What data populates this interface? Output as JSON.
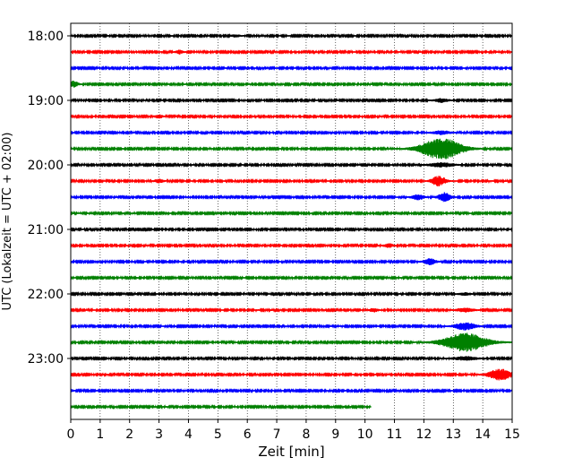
{
  "chart_data": {
    "type": "line",
    "title": "",
    "xlabel": "Zeit  [min]",
    "ylabel": "UTC (Lokalzeit = UTC + 02:00)",
    "xlim": [
      0,
      15
    ],
    "x_ticks": [
      "0",
      "1",
      "2",
      "3",
      "4",
      "5",
      "6",
      "7",
      "8",
      "9",
      "10",
      "11",
      "12",
      "13",
      "14",
      "15"
    ],
    "y_ticks": [
      "18:00",
      "19:00",
      "20:00",
      "21:00",
      "22:00",
      "23:00"
    ],
    "grid": "vertical dotted",
    "trace_interval_minutes": 15,
    "trace_colors": [
      "#000000",
      "#ff0000",
      "#0000ff",
      "#008000"
    ],
    "series": [
      {
        "start": "18:00",
        "color": "#000000",
        "noise": 0.25,
        "events": [
          {
            "t": 5.6,
            "amp": 0.35,
            "width": 0.15
          }
        ]
      },
      {
        "start": "18:15",
        "color": "#ff0000",
        "noise": 0.25,
        "events": [
          {
            "t": 3.7,
            "amp": 0.6,
            "width": 0.12
          }
        ]
      },
      {
        "start": "18:30",
        "color": "#0000ff",
        "noise": 0.25,
        "events": [
          {
            "t": 15.0,
            "amp": 0.5,
            "width": 0.1
          }
        ]
      },
      {
        "start": "18:45",
        "color": "#008000",
        "noise": 0.25,
        "events": [
          {
            "t": 0.1,
            "amp": 1.0,
            "width": 0.15
          }
        ]
      },
      {
        "start": "19:00",
        "color": "#000000",
        "noise": 0.25,
        "events": [
          {
            "t": 12.6,
            "amp": 0.6,
            "width": 0.25
          }
        ]
      },
      {
        "start": "19:15",
        "color": "#ff0000",
        "noise": 0.25,
        "events": [
          {
            "t": 3.0,
            "amp": 0.55,
            "width": 0.12
          }
        ]
      },
      {
        "start": "19:30",
        "color": "#0000ff",
        "noise": 0.25,
        "events": [
          {
            "t": 12.6,
            "amp": 0.6,
            "width": 0.3
          }
        ]
      },
      {
        "start": "19:45",
        "color": "#008000",
        "noise": 0.25,
        "events": [
          {
            "t": 12.6,
            "amp": 3.5,
            "width": 0.7
          }
        ]
      },
      {
        "start": "20:00",
        "color": "#000000",
        "noise": 0.25,
        "events": [
          {
            "t": 12.6,
            "amp": 0.7,
            "width": 0.4
          }
        ]
      },
      {
        "start": "20:15",
        "color": "#ff0000",
        "noise": 0.25,
        "events": [
          {
            "t": 3.0,
            "amp": 0.55,
            "width": 0.15
          },
          {
            "t": 12.5,
            "amp": 1.6,
            "width": 0.25
          }
        ]
      },
      {
        "start": "20:30",
        "color": "#0000ff",
        "noise": 0.25,
        "events": [
          {
            "t": 11.8,
            "amp": 0.9,
            "width": 0.2
          },
          {
            "t": 12.7,
            "amp": 1.5,
            "width": 0.2
          }
        ]
      },
      {
        "start": "20:45",
        "color": "#008000",
        "noise": 0.25,
        "events": []
      },
      {
        "start": "21:00",
        "color": "#000000",
        "noise": 0.25,
        "events": []
      },
      {
        "start": "21:15",
        "color": "#ff0000",
        "noise": 0.25,
        "events": [
          {
            "t": 10.8,
            "amp": 0.6,
            "width": 0.15
          }
        ]
      },
      {
        "start": "21:30",
        "color": "#0000ff",
        "noise": 0.25,
        "events": [
          {
            "t": 12.2,
            "amp": 1.0,
            "width": 0.2
          }
        ]
      },
      {
        "start": "21:45",
        "color": "#008000",
        "noise": 0.25,
        "events": []
      },
      {
        "start": "22:00",
        "color": "#000000",
        "noise": 0.25,
        "events": [
          {
            "t": 13.4,
            "amp": 0.4,
            "width": 0.2
          }
        ]
      },
      {
        "start": "22:15",
        "color": "#ff0000",
        "noise": 0.25,
        "events": [
          {
            "t": 10.3,
            "amp": 0.6,
            "width": 0.15
          },
          {
            "t": 13.4,
            "amp": 0.6,
            "width": 0.3
          }
        ]
      },
      {
        "start": "22:30",
        "color": "#0000ff",
        "noise": 0.25,
        "events": [
          {
            "t": 13.4,
            "amp": 1.2,
            "width": 0.35
          }
        ]
      },
      {
        "start": "22:45",
        "color": "#008000",
        "noise": 0.25,
        "events": [
          {
            "t": 13.4,
            "amp": 3.0,
            "width": 0.75
          }
        ]
      },
      {
        "start": "23:00",
        "color": "#000000",
        "noise": 0.25,
        "events": [
          {
            "t": 13.4,
            "amp": 0.6,
            "width": 0.4
          }
        ]
      },
      {
        "start": "23:15",
        "color": "#ff0000",
        "noise": 0.25,
        "events": [
          {
            "t": 14.6,
            "amp": 1.8,
            "width": 0.4
          }
        ]
      },
      {
        "start": "23:30",
        "color": "#0000ff",
        "noise": 0.25,
        "events": [
          {
            "t": 0.0,
            "amp": 0.4,
            "width": 0.1
          }
        ]
      },
      {
        "start": "23:45",
        "color": "#008000",
        "noise": 0.25,
        "end_minute": 10.2,
        "events": []
      }
    ]
  }
}
